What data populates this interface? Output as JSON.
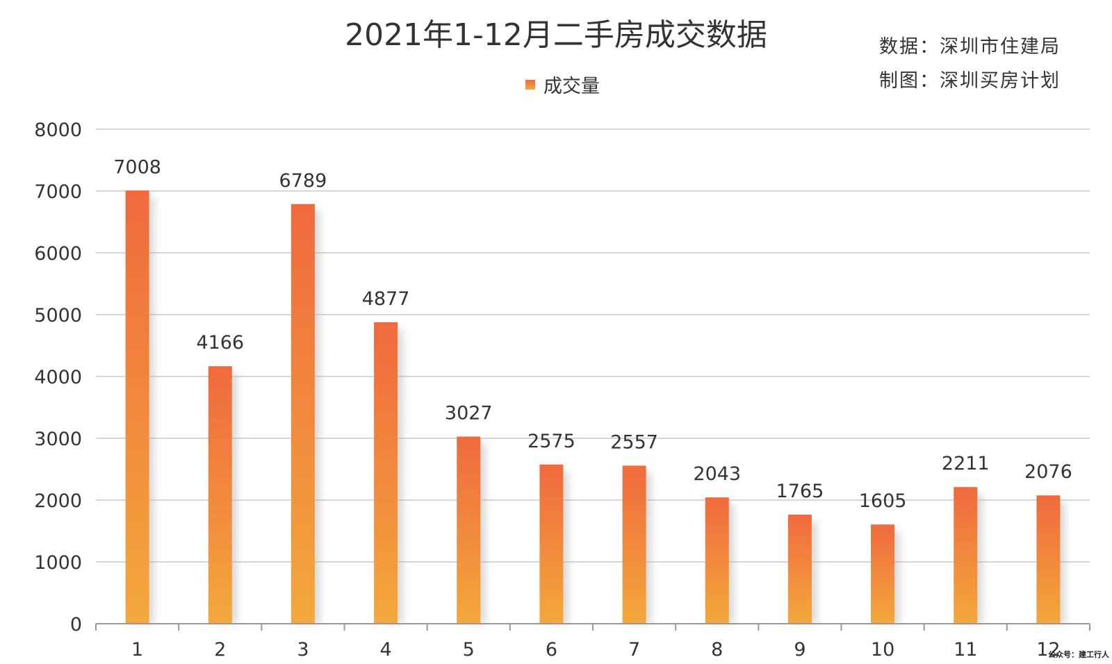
{
  "chart_data": {
    "type": "bar",
    "title": "2021年1-12月二手房成交数据",
    "categories": [
      "1",
      "2",
      "3",
      "4",
      "5",
      "6",
      "7",
      "8",
      "9",
      "10",
      "11",
      "12"
    ],
    "series": [
      {
        "name": "成交量",
        "values": [
          7008,
          4166,
          6789,
          4877,
          3027,
          2575,
          2557,
          2043,
          1765,
          1605,
          2211,
          2076
        ]
      }
    ],
    "ylim": [
      0,
      8000
    ],
    "yticks": [
      0,
      1000,
      2000,
      3000,
      4000,
      5000,
      6000,
      7000,
      8000
    ],
    "grid": true,
    "legend_position": "top-center",
    "colors": {
      "bar_top": "#f06a3e",
      "bar_bottom": "#f3a83c",
      "grid": "#d6d6d6",
      "axis": "#999999",
      "text": "#333333"
    }
  },
  "source_lines": [
    "数据：深圳市住建局",
    "制图：深圳买房计划"
  ],
  "watermark": "公众号：建工行人"
}
